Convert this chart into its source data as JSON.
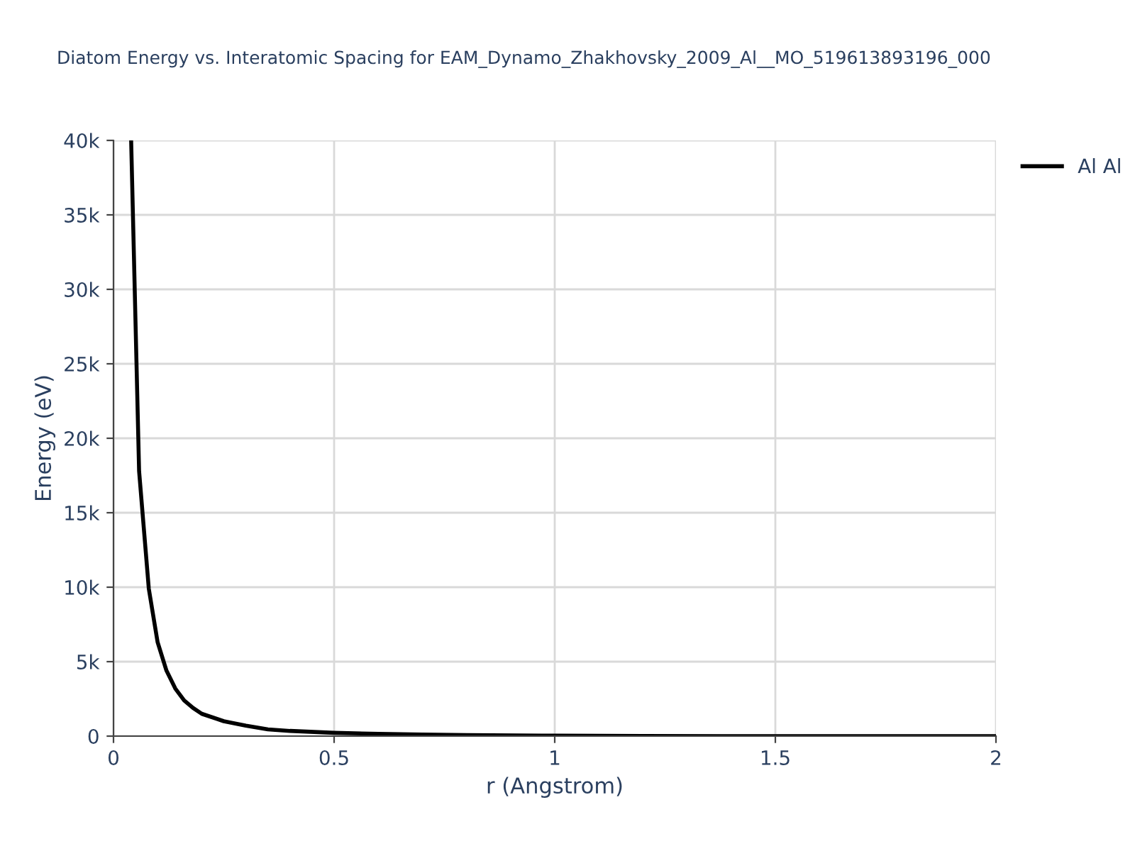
{
  "chart_data": {
    "type": "line",
    "title": "Diatom Energy vs. Interatomic Spacing for EAM_Dynamo_Zhakhovsky_2009_Al__MO_519613893196_000",
    "xlabel": "r (Angstrom)",
    "ylabel": "Energy (eV)",
    "x": [
      0.04,
      0.058,
      0.08,
      0.1,
      0.12,
      0.14,
      0.16,
      0.18,
      0.2,
      0.25,
      0.3,
      0.35,
      0.4,
      0.5,
      0.6,
      0.7,
      0.8,
      1.0,
      1.2,
      1.5,
      2.0
    ],
    "series": [
      {
        "name": "Al Al",
        "color": "#000000",
        "values": [
          40000,
          17800,
          9900,
          6300,
          4400,
          3200,
          2400,
          1900,
          1500,
          1000,
          700,
          450,
          350,
          220,
          150,
          100,
          70,
          30,
          10,
          0,
          0
        ]
      }
    ],
    "xlim": [
      0,
      2
    ],
    "ylim": [
      0,
      40000
    ],
    "xticks": [
      0,
      {
        "value": 0.5,
        "label": "0.5"
      },
      1,
      {
        "value": 1.5,
        "label": "1.5"
      },
      2
    ],
    "yticks": [
      0,
      {
        "value": 5000,
        "label": "5k"
      },
      {
        "value": 10000,
        "label": "10k"
      },
      {
        "value": 15000,
        "label": "15k"
      },
      {
        "value": 20000,
        "label": "20k"
      },
      {
        "value": 25000,
        "label": "25k"
      },
      {
        "value": 30000,
        "label": "30k"
      },
      {
        "value": 35000,
        "label": "35k"
      },
      {
        "value": 40000,
        "label": "40k"
      }
    ],
    "grid": true,
    "legend": "top right",
    "marker": "none",
    "line_style": "solid"
  }
}
